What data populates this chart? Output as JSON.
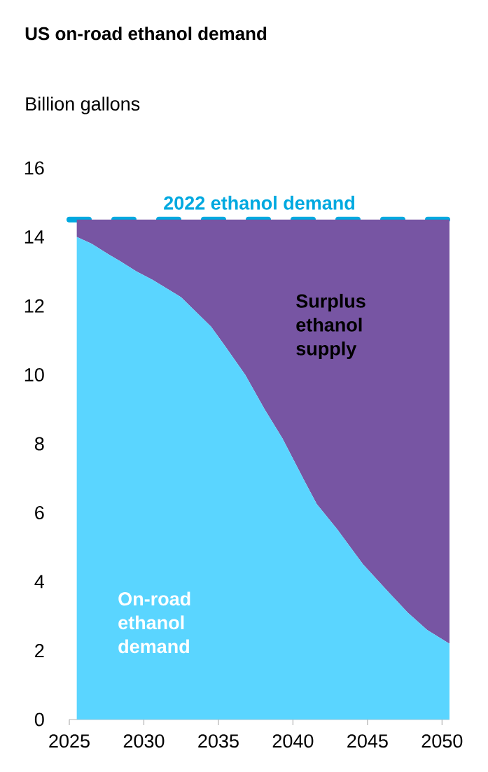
{
  "chart_data": {
    "type": "area",
    "stacked": true,
    "title": "US on-road ethanol demand",
    "ylabel": "Billion gallons",
    "x": [
      2025.5,
      2026.5,
      2027.6,
      2028.4,
      2029.5,
      2030.6,
      2032.5,
      2034.5,
      2035.5,
      2036.8,
      2038.1,
      2039.3,
      2040.8,
      2041.6,
      2043.0,
      2044.7,
      2046.4,
      2047.7,
      2049.0,
      2050.5
    ],
    "series": [
      {
        "name": "On-road ethanol demand",
        "color": "#5ad5ff",
        "values": [
          14.0,
          13.8,
          13.5,
          13.3,
          13.0,
          12.75,
          12.25,
          11.4,
          10.8,
          10.0,
          9.0,
          8.15,
          6.9,
          6.25,
          5.5,
          4.5,
          3.7,
          3.1,
          2.6,
          2.2
        ]
      },
      {
        "name": "Surplus ethanol supply",
        "color": "#7755a3",
        "values": [
          0.5,
          0.7,
          1.0,
          1.2,
          1.5,
          1.75,
          2.25,
          3.1,
          3.7,
          4.5,
          5.5,
          6.35,
          7.6,
          8.25,
          9.0,
          10.0,
          10.8,
          11.4,
          11.9,
          12.3
        ]
      }
    ],
    "xlim": [
      2025,
      2050.5
    ],
    "ylim": [
      0,
      16
    ],
    "xticks": [
      2025,
      2030,
      2035,
      2040,
      2045,
      2050
    ],
    "yticks": [
      0,
      2,
      4,
      6,
      8,
      10,
      12,
      14,
      16
    ],
    "ref_lines": [
      {
        "axis": "y",
        "value": 14.5,
        "label": "2022 ethanol demand",
        "color": "#00a9e0",
        "line_style": "dashed"
      }
    ]
  }
}
